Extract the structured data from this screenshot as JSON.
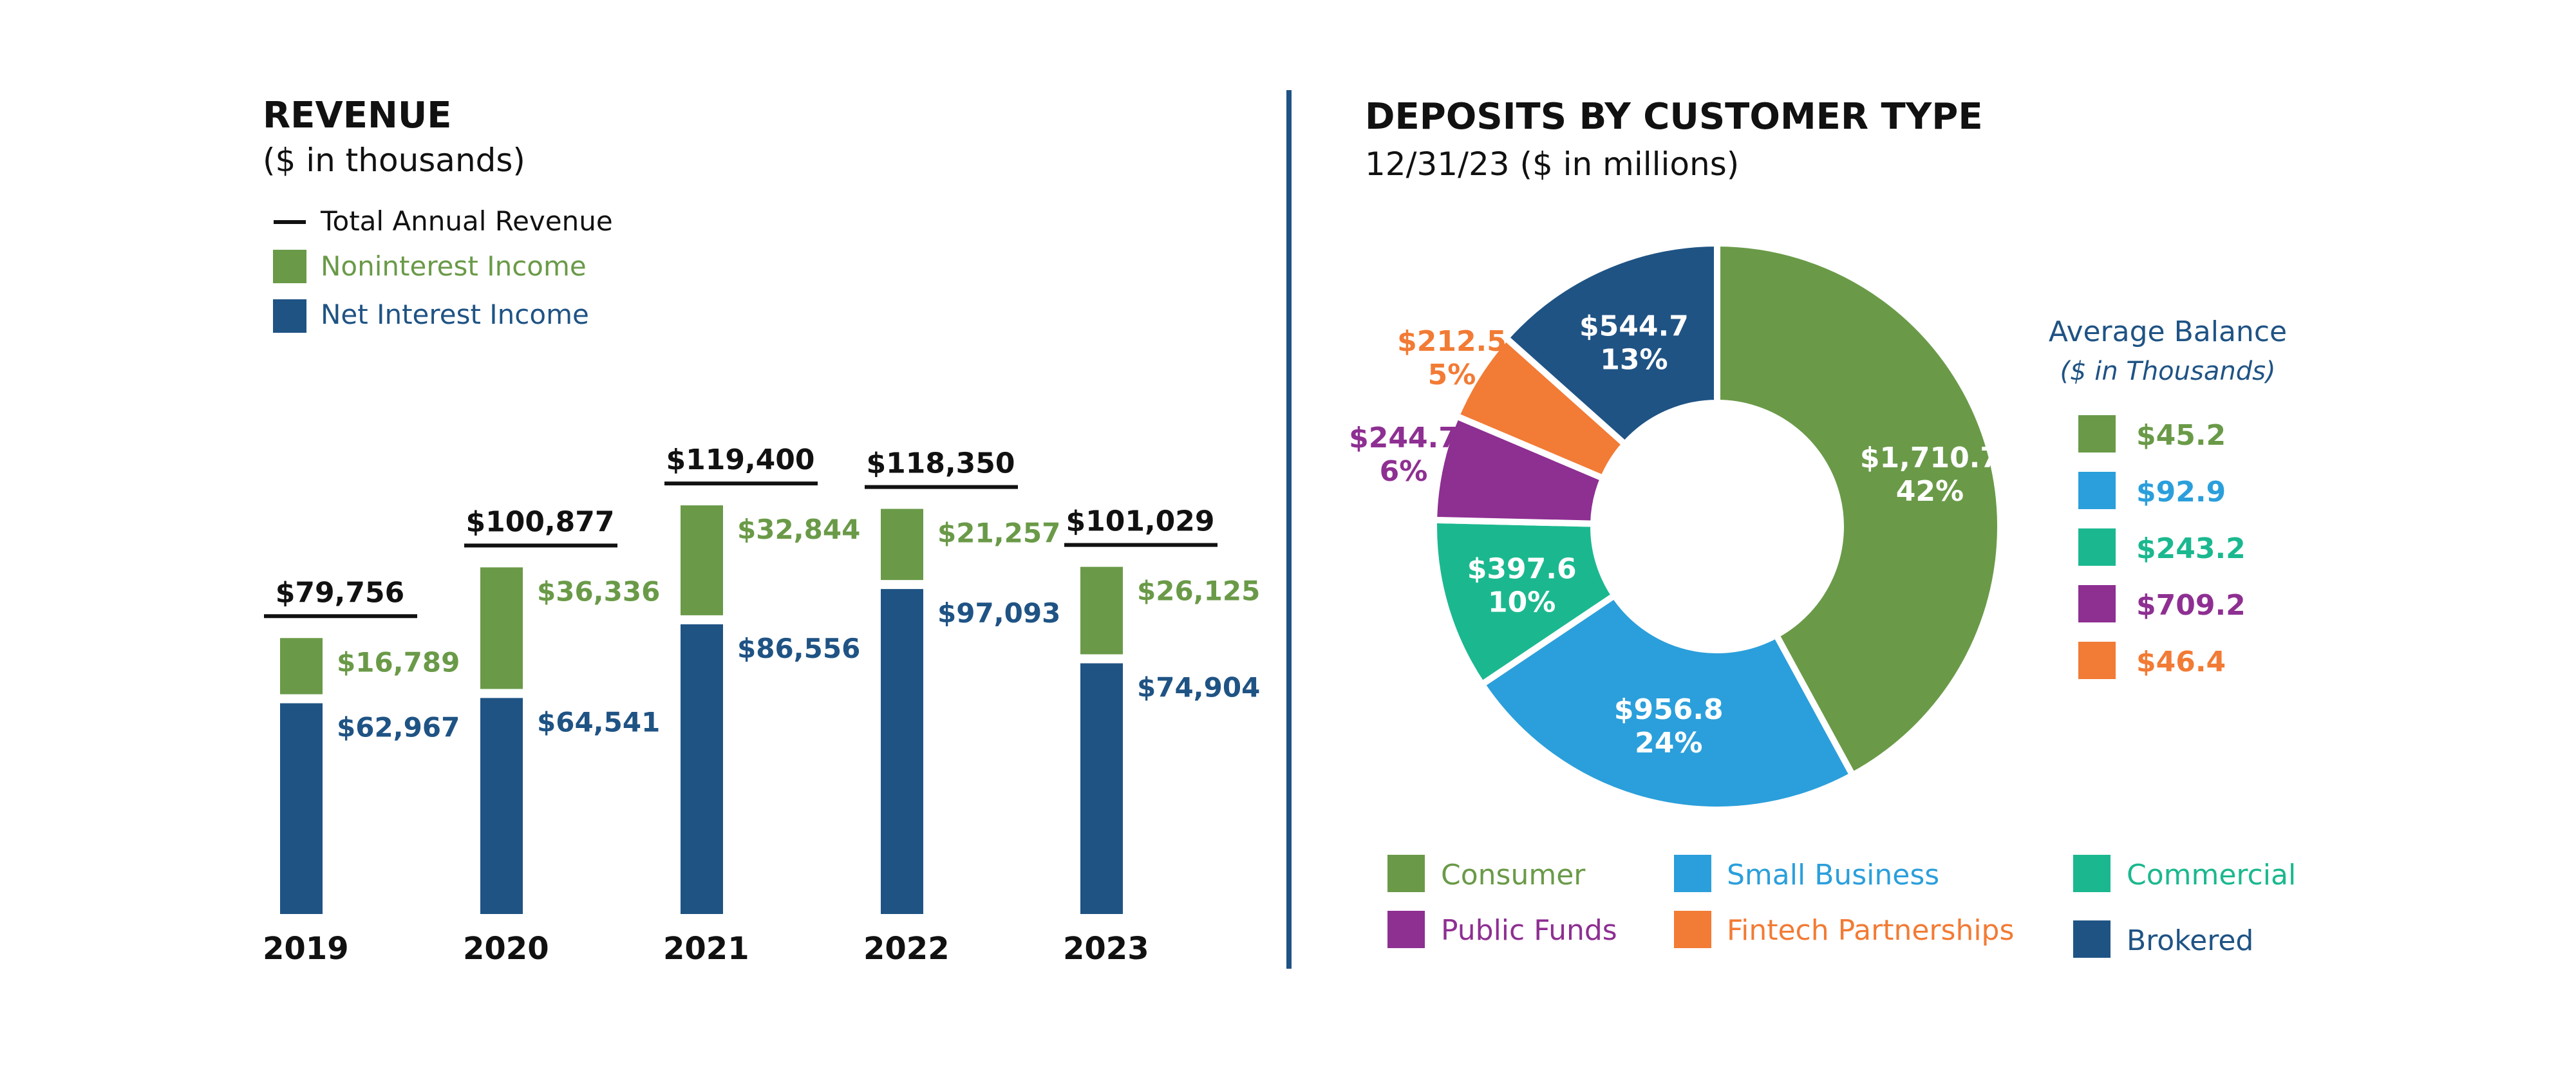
{
  "revenue": {
    "title": "REVENUE",
    "subtitle": "($ in thousands)",
    "legend": [
      {
        "key": "total",
        "label": "Total Annual Revenue",
        "color": "#111111"
      },
      {
        "key": "nonint",
        "label": "Noninterest Income",
        "color": "#6a9a48"
      },
      {
        "key": "netint",
        "label": "Net Interest Income",
        "color": "#1f5384"
      }
    ]
  },
  "deposits": {
    "title": "DEPOSITS BY CUSTOMER TYPE",
    "subtitle": "12/31/23 ($ in millions)",
    "avg_title": "Average Balance",
    "avg_subtitle": "($ in Thousands)",
    "legend": [
      {
        "label": "Consumer",
        "color": "#6a9a48"
      },
      {
        "label": "Small Business",
        "color": "#2b9fdb"
      },
      {
        "label": "Commercial",
        "color": "#1bb88f"
      },
      {
        "label": "Public Funds",
        "color": "#8e2f92"
      },
      {
        "label": "Fintech Partnerships",
        "color": "#f27b35"
      },
      {
        "label": "Brokered",
        "color": "#1f5384"
      }
    ]
  },
  "chart_data": [
    {
      "type": "bar",
      "stacked": true,
      "title": "REVENUE",
      "subtitle": "($ in thousands)",
      "categories": [
        "2019",
        "2020",
        "2021",
        "2022",
        "2023"
      ],
      "series": [
        {
          "name": "Net Interest Income",
          "color": "#1f5384",
          "values": [
            62967,
            64541,
            86556,
            97093,
            74904
          ],
          "labels": [
            "$62,967",
            "$64,541",
            "$86,556",
            "$97,093",
            "$74,904"
          ]
        },
        {
          "name": "Noninterest Income",
          "color": "#6a9a48",
          "values": [
            16789,
            36336,
            32844,
            21257,
            26125
          ],
          "labels": [
            "$16,789",
            "$36,336",
            "$32,844",
            "$21,257",
            "$26,125"
          ]
        }
      ],
      "totals": {
        "name": "Total Annual Revenue",
        "values": [
          79756,
          100877,
          119400,
          118350,
          101029
        ],
        "labels": [
          "$79,756",
          "$100,877",
          "$119,400",
          "$118,350",
          "$101,029"
        ]
      }
    },
    {
      "type": "pie",
      "donut": true,
      "title": "DEPOSITS BY CUSTOMER TYPE",
      "subtitle": "12/31/23 ($ in millions)",
      "slices": [
        {
          "name": "Consumer",
          "value": 1710.7,
          "percent": 42,
          "value_label": "$1,710.7",
          "percent_label": "42%",
          "avg_balance": "$45.2",
          "color": "#6a9a48",
          "label_inside": true
        },
        {
          "name": "Small Business",
          "value": 956.8,
          "percent": 24,
          "value_label": "$956.8",
          "percent_label": "24%",
          "avg_balance": "$92.9",
          "color": "#2b9fdb",
          "label_inside": true
        },
        {
          "name": "Commercial",
          "value": 397.6,
          "percent": 10,
          "value_label": "$397.6",
          "percent_label": "10%",
          "avg_balance": "$243.2",
          "color": "#1bb88f",
          "label_inside": true
        },
        {
          "name": "Public Funds",
          "value": 244.7,
          "percent": 6,
          "value_label": "$244.7",
          "percent_label": "6%",
          "avg_balance": "$709.2",
          "color": "#8e2f92",
          "label_inside": false
        },
        {
          "name": "Fintech Partnerships",
          "value": 212.5,
          "percent": 5,
          "value_label": "$212.5",
          "percent_label": "5%",
          "avg_balance": "$46.4",
          "color": "#f27b35",
          "label_inside": false
        },
        {
          "name": "Brokered",
          "value": 544.7,
          "percent": 13,
          "value_label": "$544.7",
          "percent_label": "13%",
          "color": "#1f5384",
          "label_inside": true
        }
      ]
    }
  ]
}
